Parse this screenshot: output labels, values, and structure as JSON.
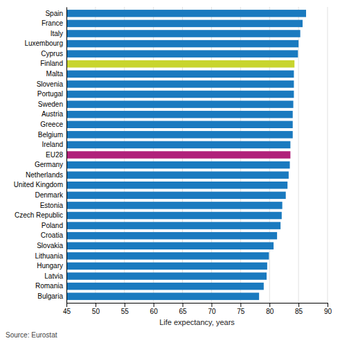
{
  "chart_data": {
    "type": "bar",
    "orientation": "horizontal",
    "categories": [
      "Spain",
      "France",
      "Italy",
      "Luxembourg",
      "Cyprus",
      "Finland",
      "Malta",
      "Slovenia",
      "Portugal",
      "Sweden",
      "Austria",
      "Greece",
      "Belgium",
      "Ireland",
      "EU28",
      "Germany",
      "Netherlands",
      "United Kingdom",
      "Denmark",
      "Estonia",
      "Czech Republic",
      "Poland",
      "Croatia",
      "Slovakia",
      "Lithuania",
      "Hungary",
      "Latvia",
      "Romania",
      "Bulgaria"
    ],
    "values": [
      86.3,
      85.7,
      85.3,
      85.0,
      84.9,
      84.3,
      84.2,
      84.2,
      84.2,
      84.1,
      84.0,
      84.0,
      84.0,
      83.6,
      83.6,
      83.5,
      83.3,
      83.1,
      82.8,
      82.2,
      82.1,
      81.9,
      81.3,
      80.7,
      79.9,
      79.6,
      79.5,
      79.0,
      78.2
    ],
    "colors": [
      "#1a7abf",
      "#1a7abf",
      "#1a7abf",
      "#1a7abf",
      "#1a7abf",
      "#c8d52e",
      "#1a7abf",
      "#1a7abf",
      "#1a7abf",
      "#1a7abf",
      "#1a7abf",
      "#1a7abf",
      "#1a7abf",
      "#1a7abf",
      "#b0217a",
      "#1a7abf",
      "#1a7abf",
      "#1a7abf",
      "#1a7abf",
      "#1a7abf",
      "#1a7abf",
      "#1a7abf",
      "#1a7abf",
      "#1a7abf",
      "#1a7abf",
      "#1a7abf",
      "#1a7abf",
      "#1a7abf",
      "#1a7abf"
    ],
    "xlim": [
      45,
      90
    ],
    "xticks": [
      45,
      50,
      55,
      60,
      65,
      70,
      75,
      80,
      85,
      90
    ],
    "xlabel": "Life expectancy, years",
    "annotations": [
      "Source: Eurostat"
    ],
    "grid": true
  }
}
